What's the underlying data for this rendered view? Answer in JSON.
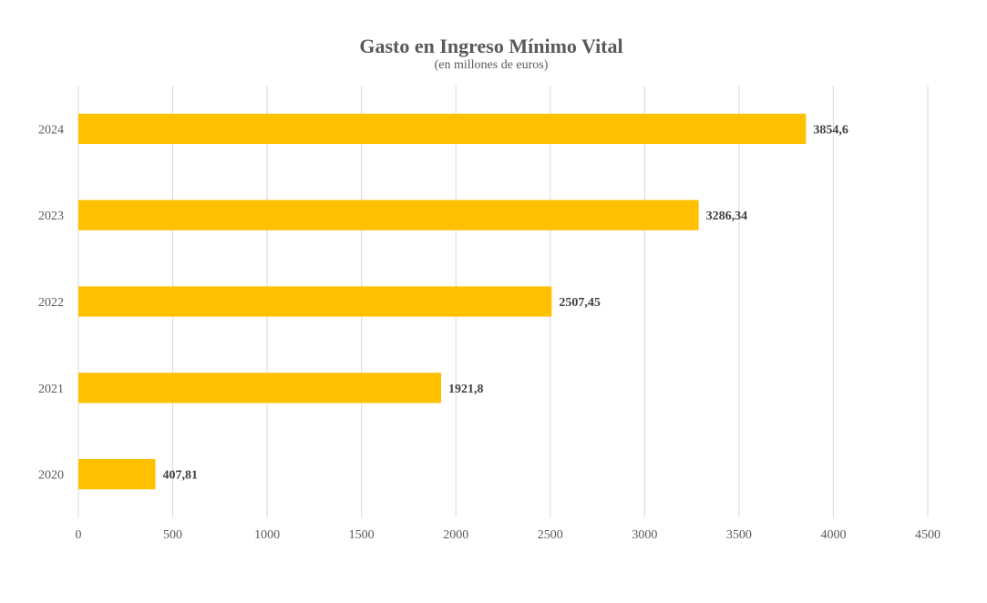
{
  "chart_data": {
    "type": "bar",
    "orientation": "horizontal",
    "title": "Gasto en Ingreso Mínimo Vital",
    "subtitle": "(en millones de euros)",
    "xlabel": "",
    "ylabel": "",
    "categories": [
      "2020",
      "2021",
      "2022",
      "2023",
      "2024"
    ],
    "values": [
      407.81,
      1921.8,
      2507.45,
      3286.34,
      3854.6
    ],
    "data_labels": [
      "407,81",
      "1921,8",
      "2507,45",
      "3286,34",
      "3854,6"
    ],
    "xlim": [
      0,
      4500
    ],
    "x_ticks": [
      0,
      500,
      1000,
      1500,
      2000,
      2500,
      3000,
      3500,
      4000,
      4500
    ],
    "grid": "vertical",
    "legend": "none",
    "bar_color": "#FFC000",
    "grid_color": "#D9D9D9",
    "text_color": "#595959"
  }
}
